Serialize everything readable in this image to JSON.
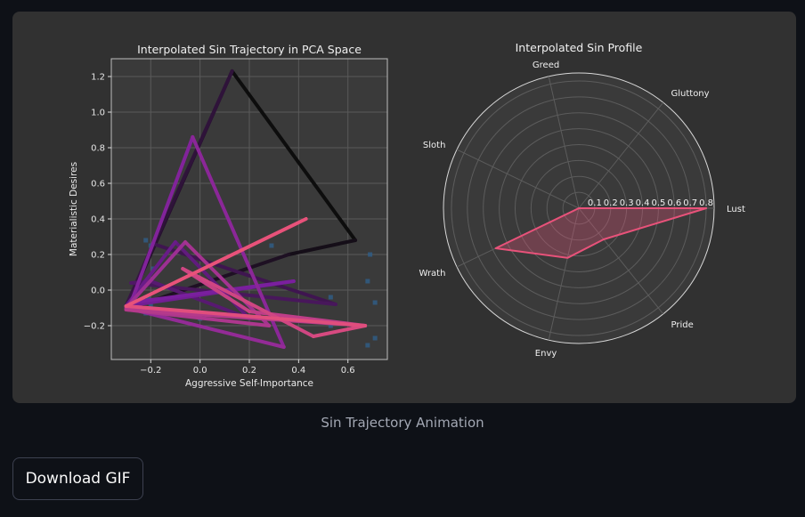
{
  "caption": "Sin Trajectory Animation",
  "download_label": "Download GIF",
  "colors": {
    "page_bg": "#0e1117",
    "panel_bg": "#313131",
    "axes_bg": "#3a3a3a",
    "trajectory_start": "#0d0d0d",
    "trajectory_mid": "#7a1f9e",
    "trajectory_end": "#e8527a",
    "scatter": "#2f5f8a",
    "radar_face": "#3a3a3a",
    "radar_line": "#e8527a"
  },
  "chart_data": [
    {
      "type": "line",
      "title": "Interpolated Sin Trajectory in PCA Space",
      "xlabel": "Aggressive Self-Importance",
      "ylabel": "Materialistic Desires",
      "xlim": [
        -0.36,
        0.76
      ],
      "ylim": [
        -0.39,
        1.3
      ],
      "xticks": [
        -0.2,
        0.0,
        0.2,
        0.4,
        0.6
      ],
      "yticks": [
        -0.2,
        0.0,
        0.2,
        0.4,
        0.6,
        0.8,
        1.0,
        1.2
      ],
      "grid": true,
      "scatter_points": [
        {
          "x": -0.22,
          "y": 0.28
        },
        {
          "x": -0.2,
          "y": 0.25
        },
        {
          "x": -0.19,
          "y": 0.12
        },
        {
          "x": -0.21,
          "y": -0.05
        },
        {
          "x": -0.22,
          "y": -0.13
        },
        {
          "x": -0.2,
          "y": -0.09
        },
        {
          "x": 0.29,
          "y": 0.25
        },
        {
          "x": 0.53,
          "y": -0.04
        },
        {
          "x": 0.68,
          "y": 0.05
        },
        {
          "x": 0.69,
          "y": 0.2
        },
        {
          "x": 0.71,
          "y": -0.07
        },
        {
          "x": 0.71,
          "y": -0.27
        },
        {
          "x": 0.68,
          "y": -0.31
        },
        {
          "x": 0.53,
          "y": -0.2
        },
        {
          "x": 0.0,
          "y": -0.16
        }
      ],
      "trajectory": [
        {
          "x": 0.13,
          "y": 1.23
        },
        {
          "x": 0.63,
          "y": 0.28
        },
        {
          "x": 0.36,
          "y": 0.2
        },
        {
          "x": -0.3,
          "y": -0.11
        },
        {
          "x": 0.13,
          "y": 1.23
        },
        {
          "x": -0.3,
          "y": -0.09
        },
        {
          "x": -0.19,
          "y": 0.26
        },
        {
          "x": 0.55,
          "y": -0.08
        },
        {
          "x": -0.28,
          "y": 0.04
        },
        {
          "x": -0.2,
          "y": 0.05
        },
        {
          "x": 0.2,
          "y": -0.16
        },
        {
          "x": -0.1,
          "y": 0.27
        },
        {
          "x": -0.3,
          "y": -0.09
        },
        {
          "x": 0.38,
          "y": 0.05
        },
        {
          "x": -0.28,
          "y": -0.07
        },
        {
          "x": -0.03,
          "y": 0.86
        },
        {
          "x": 0.34,
          "y": -0.32
        },
        {
          "x": -0.3,
          "y": -0.1
        },
        {
          "x": -0.06,
          "y": 0.27
        },
        {
          "x": 0.28,
          "y": -0.2
        },
        {
          "x": -0.3,
          "y": -0.11
        },
        {
          "x": 0.67,
          "y": -0.2
        },
        {
          "x": 0.2,
          "y": -0.12
        },
        {
          "x": -0.07,
          "y": 0.12
        },
        {
          "x": 0.46,
          "y": -0.26
        },
        {
          "x": 0.67,
          "y": -0.2
        },
        {
          "x": -0.3,
          "y": -0.09
        },
        {
          "x": 0.43,
          "y": 0.4
        }
      ]
    },
    {
      "type": "radar",
      "title": "Interpolated Sin Profile",
      "categories": [
        "Lust",
        "Gluttony",
        "Greed",
        "Sloth",
        "Wrath",
        "Envy",
        "Pride"
      ],
      "rticks": [
        "0.1",
        "0.2",
        "0.3",
        "0.4",
        "0.5",
        "0.6",
        "0.7",
        "0.8"
      ],
      "rlim": [
        0,
        0.85
      ],
      "values": [
        0.8,
        0.0,
        0.0,
        0.0,
        0.58,
        0.32,
        0.25
      ],
      "grid": true
    }
  ]
}
